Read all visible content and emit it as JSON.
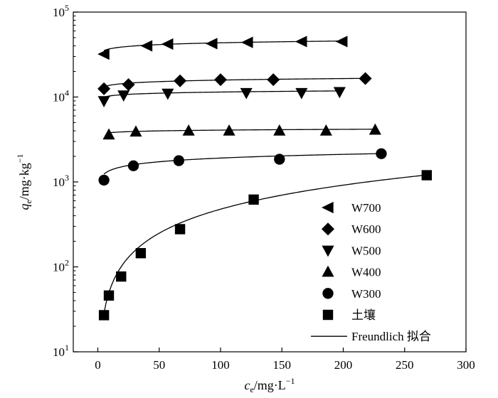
{
  "chart_data": {
    "type": "scatter",
    "x_axis": {
      "label": "c",
      "label_sub": "e",
      "label_rest": "/mg·L",
      "label_sup": "−1",
      "lim": [
        -20,
        300
      ],
      "ticks": [
        "0",
        "50",
        "100",
        "150",
        "200",
        "250",
        "300"
      ]
    },
    "y_axis": {
      "label": "q",
      "label_sub": "e",
      "label_rest": "/mg·kg",
      "label_sup": "−1",
      "scale": "log",
      "lim": [
        10,
        100000
      ],
      "ticks": [
        {
          "base": "10",
          "exp": "1"
        },
        {
          "base": "10",
          "exp": "2"
        },
        {
          "base": "10",
          "exp": "3"
        },
        {
          "base": "10",
          "exp": "4"
        },
        {
          "base": "10",
          "exp": "5"
        }
      ]
    },
    "grid": false,
    "legend_position": "bottom-right",
    "series": [
      {
        "name": "W700",
        "marker": "triangle-left",
        "points": [
          [
            5,
            32000
          ],
          [
            40,
            40000
          ],
          [
            57,
            42000
          ],
          [
            93,
            42500
          ],
          [
            122,
            44000
          ],
          [
            166,
            45000
          ],
          [
            199,
            45000
          ]
        ],
        "fit": {
          "K": 31500,
          "n": 0.07
        }
      },
      {
        "name": "W600",
        "marker": "diamond",
        "points": [
          [
            5,
            12500
          ],
          [
            25,
            14000
          ],
          [
            67,
            15500
          ],
          [
            100,
            16000
          ],
          [
            143,
            16000
          ],
          [
            218,
            16500
          ]
        ],
        "fit": {
          "K": 12000,
          "n": 0.06
        }
      },
      {
        "name": "W500",
        "marker": "triangle-down",
        "points": [
          [
            5,
            9000
          ],
          [
            21,
            10500
          ],
          [
            57,
            11000
          ],
          [
            121,
            11200
          ],
          [
            166,
            11200
          ],
          [
            197,
            11500
          ]
        ],
        "fit": {
          "K": 9300,
          "n": 0.045
        }
      },
      {
        "name": "W400",
        "marker": "triangle-up",
        "points": [
          [
            9,
            3600
          ],
          [
            31,
            3900
          ],
          [
            74,
            4000
          ],
          [
            107,
            4000
          ],
          [
            148,
            4000
          ],
          [
            186,
            4000
          ],
          [
            226,
            4100
          ]
        ],
        "fit": {
          "K": 3550,
          "n": 0.03
        }
      },
      {
        "name": "W300",
        "marker": "circle",
        "points": [
          [
            5,
            1050
          ],
          [
            29,
            1550
          ],
          [
            66,
            1780
          ],
          [
            148,
            1850
          ],
          [
            231,
            2150
          ]
        ],
        "fit": {
          "K": 980,
          "n": 0.145
        }
      },
      {
        "name": "土壤",
        "marker": "square",
        "points": [
          [
            5,
            27
          ],
          [
            9,
            46
          ],
          [
            19,
            77
          ],
          [
            35,
            145
          ],
          [
            67,
            278
          ],
          [
            127,
            620
          ],
          [
            268,
            1200
          ]
        ],
        "fit": {
          "K": 6.3,
          "n": 0.94
        }
      }
    ],
    "fit_legend": "Freundlich  拟合"
  }
}
